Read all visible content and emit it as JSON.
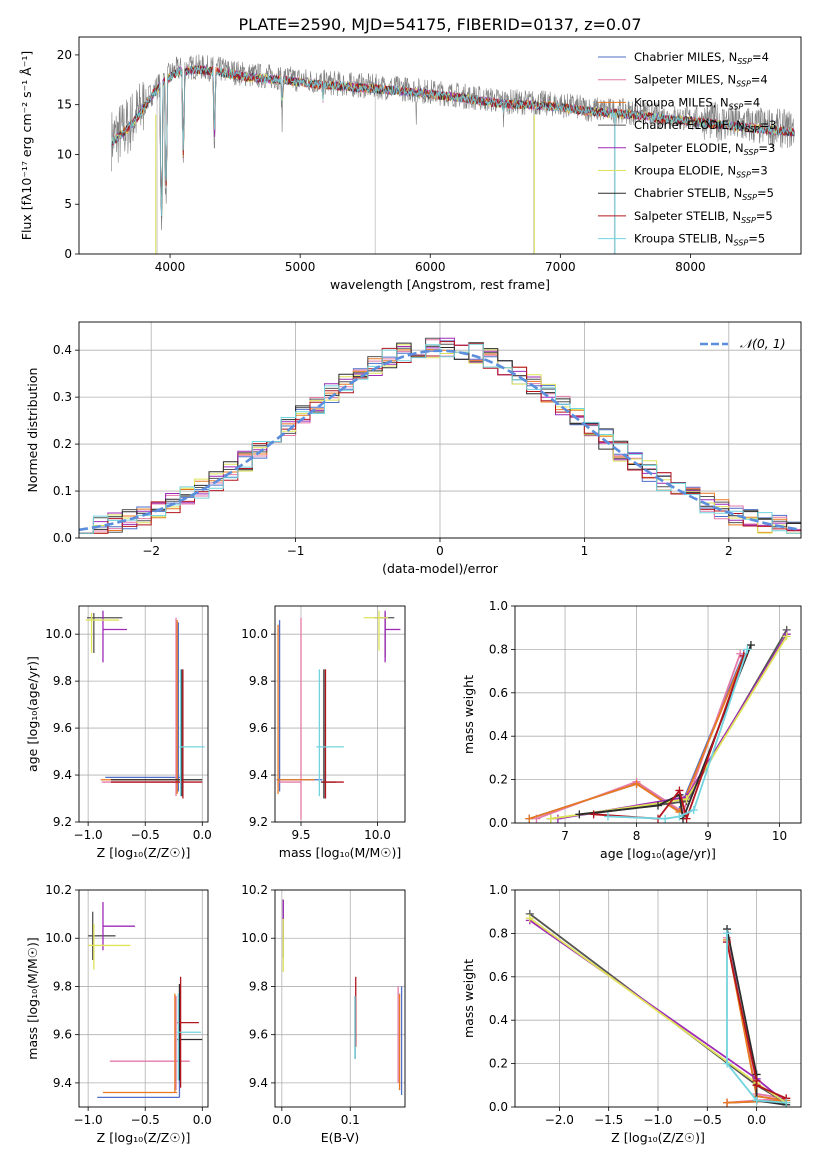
{
  "figure": {
    "title": "PLATE=2590, MJD=54175, FIBERID=0137, z=0.07"
  },
  "colors": [
    "#4f6fc9",
    "#e47aa8",
    "#e8791f",
    "#555555",
    "#9e2ab7",
    "#dfe35a",
    "#2c2c2c",
    "#b4141e",
    "#72d4de"
  ],
  "legend_entries": [
    "Chabrier MILES, N_SSP=4",
    "Salpeter MILES, N_SSP=4",
    "Kroupa MILES, N_SSP=4",
    "Chabrier ELODIE, N_SSP=3",
    "Salpeter ELODIE, N_SSP=3",
    "Kroupa ELODIE, N_SSP=3",
    "Chabrier STELIB, N_SSP=5",
    "Salpeter STELIB, N_SSP=5",
    "Kroupa STELIB, N_SSP=5"
  ],
  "chart_data": [
    {
      "id": "spectrum",
      "type": "line",
      "title": "PLATE=2590, MJD=54175, FIBERID=0137, z=0.07",
      "xlabel": "wavelength [Angstrom, rest frame]",
      "ylabel": "Flux [fλ10⁻¹⁷ erg cm⁻² s⁻¹ Å⁻¹]",
      "xlim": [
        3300,
        8850
      ],
      "ylim": [
        0,
        21.8
      ],
      "xticks": [
        4000,
        5000,
        6000,
        7000,
        8000
      ],
      "yticks": [
        0,
        5,
        10,
        15,
        20
      ],
      "legend": "top-right",
      "grid": false,
      "continuum": {
        "x": [
          3550,
          3650,
          3750,
          3850,
          3950,
          4050,
          4200,
          4400,
          4600,
          4800,
          5000,
          5200,
          5400,
          5600,
          5800,
          6000,
          6200,
          6400,
          6600,
          6800,
          7000,
          7200,
          7400,
          7600,
          7800,
          8000,
          8200,
          8400,
          8600,
          8800
        ],
        "y": [
          11.5,
          12.5,
          14.0,
          16.0,
          17.5,
          18.5,
          18.8,
          18.5,
          18.0,
          17.8,
          17.5,
          17.2,
          17.0,
          16.8,
          16.6,
          16.3,
          16.0,
          15.6,
          15.3,
          15.2,
          15.0,
          14.6,
          14.4,
          14.2,
          13.8,
          13.6,
          13.3,
          13.0,
          12.7,
          12.5
        ]
      },
      "absorption": [
        [
          3934,
          3
        ],
        [
          3968,
          5
        ],
        [
          4102,
          9
        ],
        [
          4340,
          10
        ],
        [
          4861,
          13
        ],
        [
          5175,
          14
        ],
        [
          5893,
          14
        ],
        [
          6563,
          13
        ]
      ],
      "artifacts": [
        [
          3900,
          0
        ],
        [
          5577,
          0
        ],
        [
          6795,
          0
        ],
        [
          7415,
          0
        ]
      ]
    },
    {
      "id": "residuals",
      "type": "line",
      "xlabel": "(data-model)/error",
      "ylabel": "Normed distribution",
      "xlim": [
        -2.5,
        2.5
      ],
      "ylim": [
        0,
        0.46
      ],
      "xticks": [
        -2,
        -1,
        0,
        1,
        2
      ],
      "yticks": [
        0,
        0.1,
        0.2,
        0.3,
        0.4
      ],
      "grid": true,
      "reference_curve": {
        "label": "𝒩(0, 1)",
        "color": "#5b8edc",
        "style": "dashed",
        "mean": 0,
        "sigma": 1
      },
      "bin_width": 0.1,
      "legend": "top-right"
    },
    {
      "id": "age-Z",
      "type": "scatter",
      "xlabel": "Z [log₁₀(Z/Z☉)]",
      "ylabel": "age  [log₁₀(age/yr)]",
      "xlim": [
        -1.08,
        0.05
      ],
      "ylim": [
        9.2,
        10.12
      ],
      "xticks": [
        -1.0,
        -0.5,
        0.0
      ],
      "yticks": [
        9.2,
        9.4,
        9.6,
        9.8,
        10.0
      ],
      "grid": true,
      "points": [
        {
          "x": -0.21,
          "y": 9.39,
          "xerr": [
            0.64,
            0.02
          ],
          "yerr": [
            0.06,
            0.66
          ]
        },
        {
          "x": -0.23,
          "y": 9.37,
          "xerr": [
            0.65,
            0.05
          ],
          "yerr": [
            0.06,
            0.7
          ]
        },
        {
          "x": -0.22,
          "y": 9.38,
          "xerr": [
            0.67,
            0.06
          ],
          "yerr": [
            0.06,
            0.68
          ]
        },
        {
          "x": -0.95,
          "y": 10.07,
          "xerr": [
            0.06,
            0.25
          ],
          "yerr": [
            0.15,
            0.02
          ]
        },
        {
          "x": -0.87,
          "y": 10.02,
          "xerr": [
            0.0,
            0.21
          ],
          "yerr": [
            0.14,
            0.08
          ]
        },
        {
          "x": -0.97,
          "y": 10.06,
          "xerr": [
            0.05,
            0.24
          ],
          "yerr": [
            0.14,
            0.03
          ]
        },
        {
          "x": -0.18,
          "y": 9.38,
          "xerr": [
            0.62,
            0.18
          ],
          "yerr": [
            0.07,
            0.47
          ]
        },
        {
          "x": -0.17,
          "y": 9.37,
          "xerr": [
            0.63,
            0.17
          ],
          "yerr": [
            0.07,
            0.48
          ]
        },
        {
          "x": -0.19,
          "y": 9.52,
          "xerr": [
            0.01,
            0.21
          ],
          "yerr": [
            0.21,
            0.33
          ]
        }
      ]
    },
    {
      "id": "age-mass",
      "type": "scatter",
      "xlabel": "mass [log₁₀(M/M☉)]",
      "ylabel": "",
      "xlim": [
        9.33,
        10.18
      ],
      "ylim": [
        9.2,
        10.12
      ],
      "xticks": [
        9.5,
        10.0
      ],
      "yticks": [
        9.2,
        9.4,
        9.6,
        9.8,
        10.0
      ],
      "grid": true,
      "points": [
        {
          "x": 9.36,
          "y": 9.38,
          "xerr": [
            0.02,
            0.28
          ],
          "yerr": [
            0.05,
            0.68
          ]
        },
        {
          "x": 9.5,
          "y": 9.37,
          "xerr": [
            0.15,
            0.0
          ],
          "yerr": [
            0.16,
            0.7
          ]
        },
        {
          "x": 9.35,
          "y": 9.38,
          "xerr": [
            0.0,
            0.24
          ],
          "yerr": [
            0.06,
            0.66
          ]
        },
        {
          "x": 10.05,
          "y": 10.07,
          "xerr": [
            0.07,
            0.06
          ],
          "yerr": [
            0.17,
            0.02
          ]
        },
        {
          "x": 10.05,
          "y": 10.02,
          "xerr": [
            0.0,
            0.1
          ],
          "yerr": [
            0.14,
            0.08
          ]
        },
        {
          "x": 10.01,
          "y": 10.07,
          "xerr": [
            0.1,
            0.06
          ],
          "yerr": [
            0.14,
            0.03
          ]
        },
        {
          "x": 9.65,
          "y": 9.37,
          "xerr": [
            0.02,
            0.08
          ],
          "yerr": [
            0.07,
            0.48
          ]
        },
        {
          "x": 9.66,
          "y": 9.37,
          "xerr": [
            0.02,
            0.12
          ],
          "yerr": [
            0.07,
            0.48
          ]
        },
        {
          "x": 9.62,
          "y": 9.52,
          "xerr": [
            0.02,
            0.16
          ],
          "yerr": [
            0.21,
            0.33
          ]
        }
      ]
    },
    {
      "id": "weight-age",
      "type": "line",
      "xlabel": "age  [log₁₀(age/yr)]",
      "ylabel": "mass weight",
      "xlim": [
        6.3,
        10.3
      ],
      "ylim": [
        0,
        1
      ],
      "xticks": [
        7,
        8,
        9,
        10
      ],
      "yticks": [
        0.0,
        0.2,
        0.4,
        0.6,
        0.8,
        1.0
      ],
      "grid": true,
      "series": [
        {
          "x": [
            6.5,
            8.0,
            8.6,
            9.5
          ],
          "y": [
            0.02,
            0.18,
            0.06,
            0.78
          ]
        },
        {
          "x": [
            6.6,
            8.0,
            8.65,
            9.45
          ],
          "y": [
            0.02,
            0.19,
            0.05,
            0.78
          ]
        },
        {
          "x": [
            6.5,
            8.0,
            8.6,
            9.5
          ],
          "y": [
            0.02,
            0.18,
            0.05,
            0.77
          ]
        },
        {
          "x": [
            6.8,
            8.7,
            10.1
          ],
          "y": [
            0.02,
            0.1,
            0.89
          ]
        },
        {
          "x": [
            6.9,
            8.7,
            10.1
          ],
          "y": [
            0.02,
            0.12,
            0.87
          ]
        },
        {
          "x": [
            6.8,
            8.7,
            10.1
          ],
          "y": [
            0.02,
            0.11,
            0.86
          ]
        },
        {
          "x": [
            7.2,
            8.3,
            8.6,
            8.65,
            9.6
          ],
          "y": [
            0.04,
            0.08,
            0.13,
            0.02,
            0.82
          ]
        },
        {
          "x": [
            7.4,
            8.3,
            8.6,
            8.7,
            9.5
          ],
          "y": [
            0.04,
            0.02,
            0.15,
            0.02,
            0.77
          ]
        },
        {
          "x": [
            7.6,
            8.4,
            8.6,
            8.8,
            9.55
          ],
          "y": [
            0.03,
            0.02,
            0.03,
            0.06,
            0.8
          ]
        }
      ]
    },
    {
      "id": "mass-Z",
      "type": "scatter",
      "xlabel": "Z [log₁₀(Z/Z☉)]",
      "ylabel": "mass [log₁₀(M/M☉)]",
      "xlim": [
        -1.08,
        0.05
      ],
      "ylim": [
        9.3,
        10.2
      ],
      "xticks": [
        -1.0,
        -0.5,
        0.0
      ],
      "yticks": [
        9.4,
        9.6,
        9.8,
        10.0,
        10.2
      ],
      "grid": true,
      "points": [
        {
          "x": -0.2,
          "y": 9.34,
          "xerr": [
            0.72,
            0.0
          ],
          "yerr": [
            0.0,
            0.43
          ]
        },
        {
          "x": -0.23,
          "y": 9.49,
          "xerr": [
            0.58,
            0.12
          ],
          "yerr": [
            0.12,
            0.27
          ]
        },
        {
          "x": -0.24,
          "y": 9.36,
          "xerr": [
            0.63,
            0.02
          ],
          "yerr": [
            0.0,
            0.41
          ]
        },
        {
          "x": -0.96,
          "y": 10.01,
          "xerr": [
            0.04,
            0.2
          ],
          "yerr": [
            0.1,
            0.1
          ]
        },
        {
          "x": -0.87,
          "y": 10.05,
          "xerr": [
            0.0,
            0.28
          ],
          "yerr": [
            0.1,
            0.1
          ]
        },
        {
          "x": -0.95,
          "y": 9.97,
          "xerr": [
            0.05,
            0.32
          ],
          "yerr": [
            0.1,
            0.09
          ]
        },
        {
          "x": -0.2,
          "y": 9.58,
          "xerr": [
            0.02,
            0.2
          ],
          "yerr": [
            0.17,
            0.23
          ]
        },
        {
          "x": -0.19,
          "y": 9.65,
          "xerr": [
            0.03,
            0.16
          ],
          "yerr": [
            0.27,
            0.19
          ]
        },
        {
          "x": -0.21,
          "y": 9.61,
          "xerr": [
            0.01,
            0.2
          ],
          "yerr": [
            0.2,
            0.16
          ]
        }
      ]
    },
    {
      "id": "mass-EBV",
      "type": "scatter",
      "xlabel": "E(B-V)",
      "ylabel": "",
      "xlim": [
        -0.01,
        0.18
      ],
      "ylim": [
        9.3,
        10.2
      ],
      "xticks": [
        0.0,
        0.1
      ],
      "yticks": [
        9.4,
        9.6,
        9.8,
        10.0,
        10.2
      ],
      "grid": true,
      "points": [
        {
          "x": 0.175,
          "y": 9.55,
          "yerr": [
            0.2,
            0.25
          ]
        },
        {
          "x": 0.17,
          "y": 9.5,
          "yerr": [
            0.1,
            0.3
          ]
        },
        {
          "x": 0.172,
          "y": 9.52,
          "yerr": [
            0.15,
            0.25
          ]
        },
        {
          "x": 0.002,
          "y": 10.02,
          "yerr": [
            0.1,
            0.14
          ]
        },
        {
          "x": 0.002,
          "y": 10.05,
          "yerr": [
            0.05,
            0.11
          ]
        },
        {
          "x": 0.002,
          "y": 9.96,
          "yerr": [
            0.1,
            0.12
          ]
        },
        {
          "x": 0.107,
          "y": 9.6,
          "yerr": [
            0.1,
            0.16
          ]
        },
        {
          "x": 0.108,
          "y": 9.7,
          "yerr": [
            0.15,
            0.14
          ]
        },
        {
          "x": 0.107,
          "y": 9.6,
          "yerr": [
            0.1,
            0.16
          ]
        }
      ]
    },
    {
      "id": "weight-Z",
      "type": "line",
      "xlabel": "Z [log₁₀(Z/Z☉)]",
      "ylabel": "mass weight",
      "xlim": [
        -2.45,
        0.45
      ],
      "ylim": [
        0,
        1
      ],
      "xticks": [
        -2.0,
        -1.5,
        -1.0,
        -0.5,
        0.0
      ],
      "yticks": [
        0.0,
        0.2,
        0.4,
        0.6,
        0.8,
        1.0
      ],
      "grid": true,
      "series": [
        {
          "x": [
            -0.3,
            0.0,
            0.3,
            -0.3
          ],
          "y": [
            0.8,
            0.05,
            0.03,
            0.02
          ]
        },
        {
          "x": [
            -0.3,
            0.0,
            0.3,
            -0.3
          ],
          "y": [
            0.78,
            0.06,
            0.04,
            0.02
          ]
        },
        {
          "x": [
            -0.3,
            0.0,
            0.3,
            -0.3
          ],
          "y": [
            0.77,
            0.05,
            0.03,
            0.02
          ]
        },
        {
          "x": [
            -2.3,
            0.0,
            0.3
          ],
          "y": [
            0.89,
            0.1,
            0.02
          ]
        },
        {
          "x": [
            -2.3,
            0.0,
            0.3
          ],
          "y": [
            0.86,
            0.13,
            0.02
          ]
        },
        {
          "x": [
            -2.3,
            0.0,
            0.3
          ],
          "y": [
            0.87,
            0.11,
            0.02
          ]
        },
        {
          "x": [
            -0.3,
            0.0,
            0.0,
            0.3
          ],
          "y": [
            0.82,
            0.15,
            0.03,
            0.01
          ]
        },
        {
          "x": [
            -0.3,
            0.0,
            0.0,
            0.3
          ],
          "y": [
            0.76,
            0.12,
            0.1,
            0.04
          ]
        },
        {
          "x": [
            -0.3,
            -0.3,
            0.0,
            0.3
          ],
          "y": [
            0.8,
            0.2,
            0.03,
            0.02
          ]
        }
      ]
    }
  ]
}
